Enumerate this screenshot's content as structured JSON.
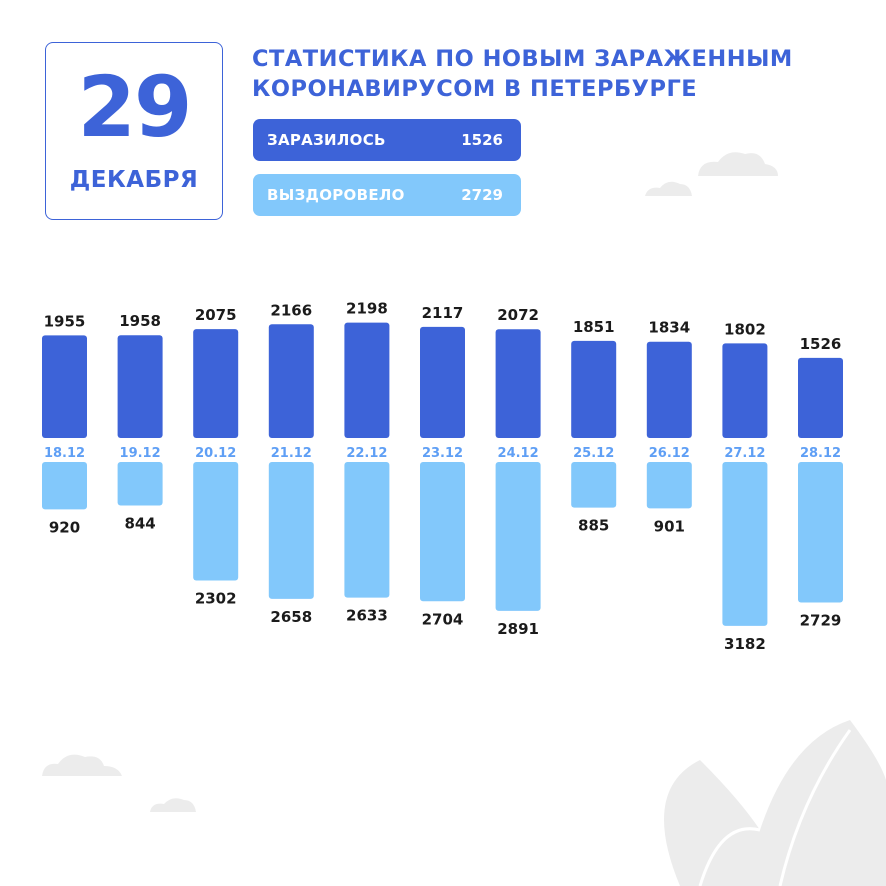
{
  "date": {
    "day": "29",
    "month": "ДЕКАБРЯ"
  },
  "title": {
    "line1": "СТАТИСТИКА ПО НОВЫМ ЗАРАЖЕННЫМ",
    "line2": "КОРОНАВИРУСОМ В ПЕТЕРБУРГЕ"
  },
  "summary": {
    "infected_label": "ЗАРАЗИЛОСЬ",
    "infected_value": "1526",
    "recovered_label": "ВЫЗДОРОВЕЛО",
    "recovered_value": "2729"
  },
  "colors": {
    "infected": "#3d63d8",
    "recovered": "#82c8fb",
    "date_label": "#5f9ff5",
    "value_label": "#1b1b1b",
    "decoration": "#ececec"
  },
  "chart_data": {
    "type": "bar",
    "categories": [
      "18.12",
      "19.12",
      "20.12",
      "21.12",
      "22.12",
      "23.12",
      "24.12",
      "25.12",
      "26.12",
      "27.12",
      "28.12"
    ],
    "series": [
      {
        "name": "ЗАРАЗИЛОСЬ",
        "values": [
          1955,
          1958,
          2075,
          2166,
          2198,
          2117,
          2072,
          1851,
          1834,
          1802,
          1526
        ]
      },
      {
        "name": "ВЫЗДОРОВЕЛО",
        "values": [
          920,
          844,
          2302,
          2658,
          2633,
          2704,
          2891,
          885,
          901,
          3182,
          2729
        ]
      }
    ],
    "layout_note": "infected bars grow upward from the date row, recovered bars grow downward"
  }
}
